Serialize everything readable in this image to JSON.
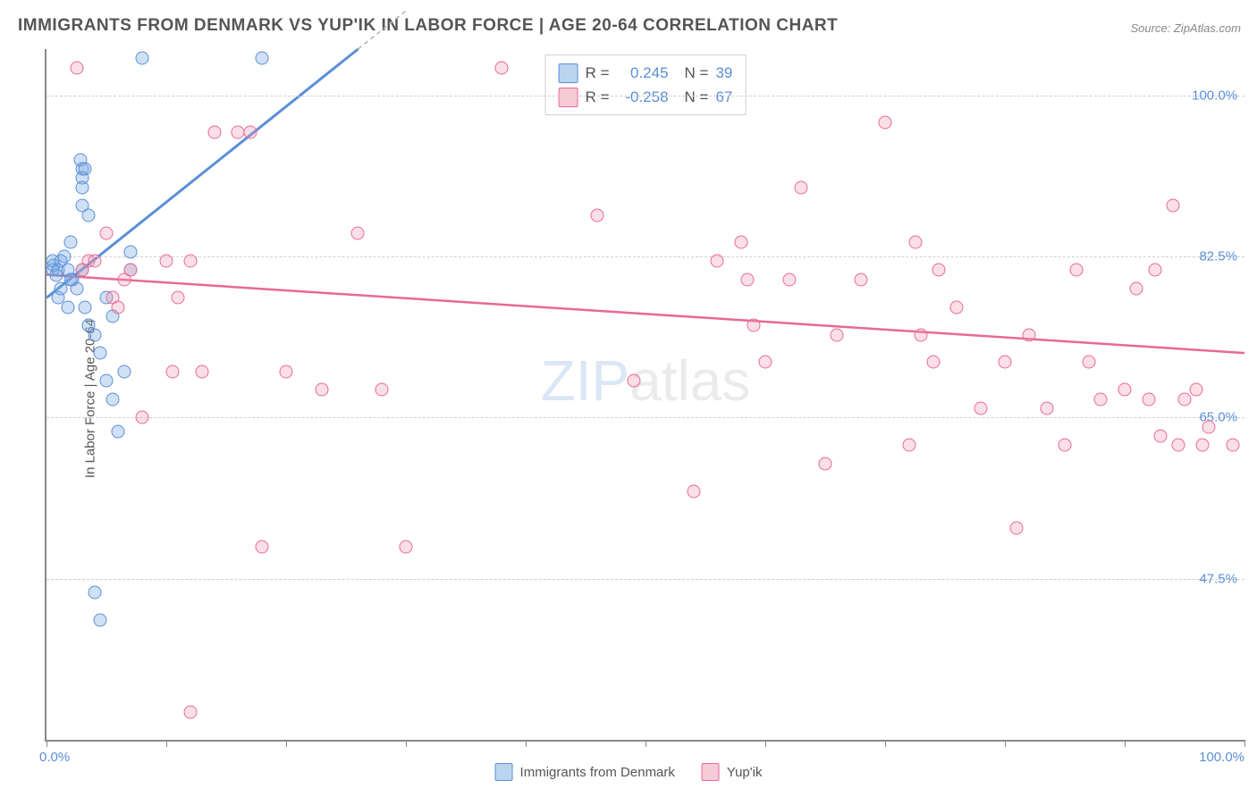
{
  "title": "IMMIGRANTS FROM DENMARK VS YUP'IK IN LABOR FORCE | AGE 20-64 CORRELATION CHART",
  "source": "Source: ZipAtlas.com",
  "ylabel": "In Labor Force | Age 20-64",
  "watermark_a": "ZIP",
  "watermark_b": "atlas",
  "chart": {
    "type": "scatter",
    "y_min": 30.0,
    "y_max": 105.0,
    "x_min": 0.0,
    "x_max": 100.0,
    "y_ticks": [
      47.5,
      65.0,
      82.5,
      100.0
    ],
    "y_tick_labels": [
      "47.5%",
      "65.0%",
      "82.5%",
      "100.0%"
    ],
    "x_ticks": [
      0,
      10,
      20,
      30,
      40,
      50,
      60,
      70,
      80,
      90,
      100
    ],
    "x_tick_label_left": "0.0%",
    "x_tick_label_right": "100.0%",
    "grid_color": "#d0d0d0",
    "background": "#ffffff",
    "axis_color": "#888888"
  },
  "series": [
    {
      "name": "Immigrants from Denmark",
      "color_fill": "rgba(120,170,225,0.35)",
      "color_stroke": "#5b8fd6",
      "R": "0.245",
      "N": "39",
      "trend": {
        "x1": 0,
        "y1": 78,
        "x2": 26,
        "y2": 105,
        "dash_x2": 30
      },
      "points": [
        [
          0.5,
          81
        ],
        [
          0.5,
          82
        ],
        [
          0.6,
          81.5
        ],
        [
          0.8,
          80.5
        ],
        [
          1.0,
          81
        ],
        [
          1.2,
          82
        ],
        [
          1.5,
          82.5
        ],
        [
          1.8,
          81
        ],
        [
          2.0,
          84
        ],
        [
          2.2,
          80
        ],
        [
          2.5,
          79
        ],
        [
          3.0,
          81
        ],
        [
          3.2,
          77
        ],
        [
          3.5,
          75
        ],
        [
          4.0,
          74
        ],
        [
          4.5,
          72
        ],
        [
          5.0,
          69
        ],
        [
          5.5,
          67
        ],
        [
          6.0,
          63.5
        ],
        [
          7.0,
          83
        ],
        [
          3.0,
          92
        ],
        [
          3.0,
          91
        ],
        [
          2.8,
          93
        ],
        [
          3.2,
          92
        ],
        [
          3.0,
          90
        ],
        [
          3.0,
          88
        ],
        [
          3.5,
          87
        ],
        [
          8.0,
          104
        ],
        [
          18.0,
          104
        ],
        [
          5.0,
          78
        ],
        [
          5.5,
          76
        ],
        [
          6.5,
          70
        ],
        [
          7.0,
          81
        ],
        [
          4.0,
          46
        ],
        [
          4.5,
          43
        ],
        [
          1.0,
          78
        ],
        [
          1.2,
          79
        ],
        [
          1.8,
          77
        ],
        [
          2.0,
          80
        ]
      ]
    },
    {
      "name": "Yup'ik",
      "color_fill": "rgba(240,150,175,0.30)",
      "color_stroke": "#e76a94",
      "R": "-0.258",
      "N": "67",
      "trend": {
        "x1": 0,
        "y1": 80.5,
        "x2": 100,
        "y2": 72
      },
      "points": [
        [
          2.5,
          103
        ],
        [
          3.0,
          81
        ],
        [
          3.5,
          82
        ],
        [
          4.0,
          82
        ],
        [
          5.0,
          85
        ],
        [
          5.5,
          78
        ],
        [
          6.0,
          77
        ],
        [
          6.5,
          80
        ],
        [
          7.0,
          81
        ],
        [
          8.0,
          65
        ],
        [
          10.0,
          82
        ],
        [
          10.5,
          70
        ],
        [
          11.0,
          78
        ],
        [
          12.0,
          82
        ],
        [
          13.0,
          70
        ],
        [
          14.0,
          96
        ],
        [
          16.0,
          96
        ],
        [
          17.0,
          96
        ],
        [
          18.0,
          51
        ],
        [
          20.0,
          70
        ],
        [
          23.0,
          68
        ],
        [
          26.0,
          85
        ],
        [
          28.0,
          68
        ],
        [
          30.0,
          51
        ],
        [
          38.0,
          103
        ],
        [
          46.0,
          87
        ],
        [
          49.0,
          69
        ],
        [
          54.0,
          57
        ],
        [
          56.0,
          82
        ],
        [
          58.0,
          84
        ],
        [
          58.5,
          80
        ],
        [
          59.0,
          75
        ],
        [
          60.0,
          71
        ],
        [
          62.0,
          80
        ],
        [
          63.0,
          90
        ],
        [
          65.0,
          60
        ],
        [
          66.0,
          74
        ],
        [
          68.0,
          80
        ],
        [
          70.0,
          97
        ],
        [
          72.0,
          62
        ],
        [
          72.5,
          84
        ],
        [
          73.0,
          74
        ],
        [
          74.0,
          71
        ],
        [
          74.5,
          81
        ],
        [
          76.0,
          77
        ],
        [
          78.0,
          66
        ],
        [
          80.0,
          71
        ],
        [
          81.0,
          53
        ],
        [
          82.0,
          74
        ],
        [
          83.5,
          66
        ],
        [
          85.0,
          62
        ],
        [
          86.0,
          81
        ],
        [
          87.0,
          71
        ],
        [
          88.0,
          67
        ],
        [
          90.0,
          68
        ],
        [
          91.0,
          79
        ],
        [
          92.0,
          67
        ],
        [
          92.5,
          81
        ],
        [
          93.0,
          63
        ],
        [
          94.0,
          88
        ],
        [
          94.5,
          62
        ],
        [
          95.0,
          67
        ],
        [
          96.0,
          68
        ],
        [
          96.5,
          62
        ],
        [
          97.0,
          64
        ],
        [
          99.0,
          62
        ],
        [
          12.0,
          33
        ]
      ]
    }
  ],
  "legend": {
    "series1_label": "Immigrants from Denmark",
    "series2_label": "Yup'ik"
  },
  "stats_box": {
    "r_label": "R =",
    "n_label": "N ="
  }
}
